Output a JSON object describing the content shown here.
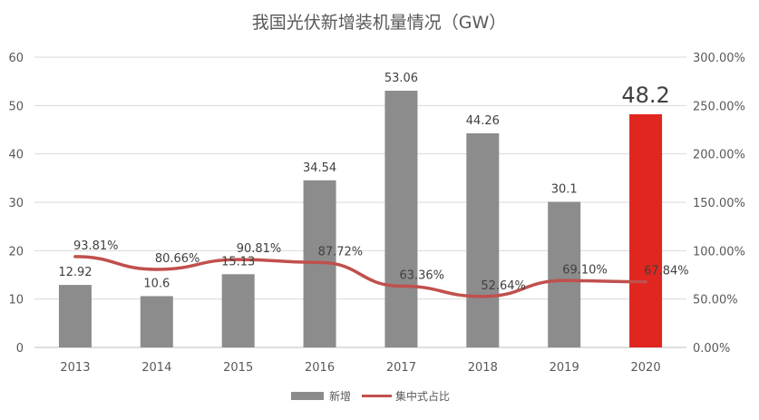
{
  "chart_data": {
    "type": "bar",
    "title": "我国光伏新增装机量情况（GW）",
    "categories": [
      "2013",
      "2014",
      "2015",
      "2016",
      "2017",
      "2018",
      "2019",
      "2020"
    ],
    "series": [
      {
        "name": "新增",
        "type": "bar",
        "axis": "left",
        "values": [
          12.92,
          10.6,
          15.13,
          34.54,
          53.06,
          44.26,
          30.1,
          48.2
        ],
        "labels": [
          "12.92",
          "10.6",
          "15.13",
          "34.54",
          "53.06",
          "44.26",
          "30.1",
          "48.2"
        ],
        "color": "#8c8c8c",
        "highlight_color": "#e0261f",
        "highlight_index": 7
      },
      {
        "name": "集中式占比",
        "type": "line",
        "axis": "right",
        "values": [
          93.81,
          80.66,
          90.81,
          87.72,
          63.36,
          52.64,
          69.1,
          67.84
        ],
        "labels": [
          "93.81%",
          "80.66%",
          "90.81%",
          "87.72%",
          "63.36%",
          "52.64%",
          "69.10%",
          "67.84%"
        ],
        "color": "#c0504d"
      }
    ],
    "y_left": {
      "range": [
        0,
        60
      ],
      "ticks": [
        "0",
        "10",
        "20",
        "30",
        "40",
        "50",
        "60"
      ]
    },
    "y_right": {
      "range": [
        0,
        300
      ],
      "ticks": [
        "0.00%",
        "50.00%",
        "100.00%",
        "150.00%",
        "200.00%",
        "250.00%",
        "300.00%"
      ]
    },
    "grid": true,
    "legend": "bottom"
  }
}
